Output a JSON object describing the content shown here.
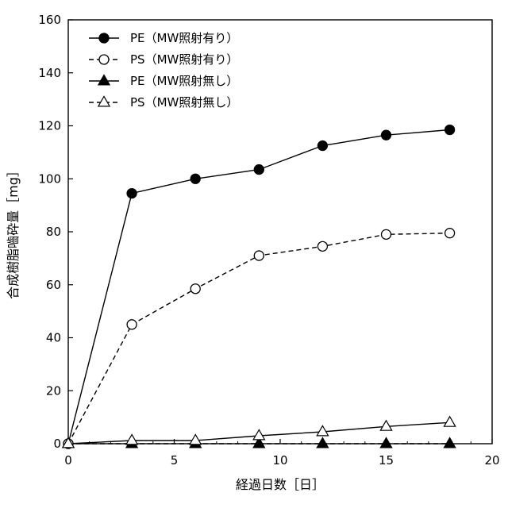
{
  "chart_data": {
    "type": "line",
    "title": "",
    "xlabel": "経過日数［日］",
    "ylabel": "合成樹脂嚙砕量［mg］",
    "xlim": [
      0,
      20
    ],
    "ylim": [
      0,
      160
    ],
    "xticks": [
      "0",
      "5",
      "10",
      "15",
      "20"
    ],
    "yticks": [
      "0",
      "20",
      "40",
      "60",
      "80",
      "100",
      "120",
      "140",
      "160"
    ],
    "grid": false,
    "legend_position": "top-left",
    "series": [
      {
        "name": "PE（MW照射有り）",
        "marker": "circle",
        "filled": true,
        "line": "solid",
        "legend_line": "solid",
        "x": [
          0,
          3,
          6,
          9,
          12,
          15,
          18
        ],
        "y": [
          0,
          94.5,
          100,
          103.5,
          112.5,
          116.5,
          118.5
        ]
      },
      {
        "name": "PS（MW照射有り）",
        "marker": "circle",
        "filled": false,
        "line": "dashed",
        "legend_line": "dashed",
        "x": [
          0,
          3,
          6,
          9,
          12,
          15,
          18
        ],
        "y": [
          0,
          45,
          58.5,
          71,
          74.5,
          79,
          79.5
        ]
      },
      {
        "name": "PE（MW照射無し）",
        "marker": "triangle",
        "filled": true,
        "line": "dashed",
        "legend_line": "solid",
        "x": [
          0,
          3,
          6,
          9,
          12,
          15,
          18
        ],
        "y": [
          0,
          0,
          0,
          0,
          0,
          0,
          0
        ]
      },
      {
        "name": "PS（MW照射無し）",
        "marker": "triangle",
        "filled": false,
        "line": "solid",
        "legend_line": "dashed",
        "x": [
          0,
          3,
          6,
          9,
          12,
          15,
          18
        ],
        "y": [
          0,
          1.2,
          1.2,
          3,
          4.5,
          6.5,
          8
        ]
      }
    ]
  }
}
